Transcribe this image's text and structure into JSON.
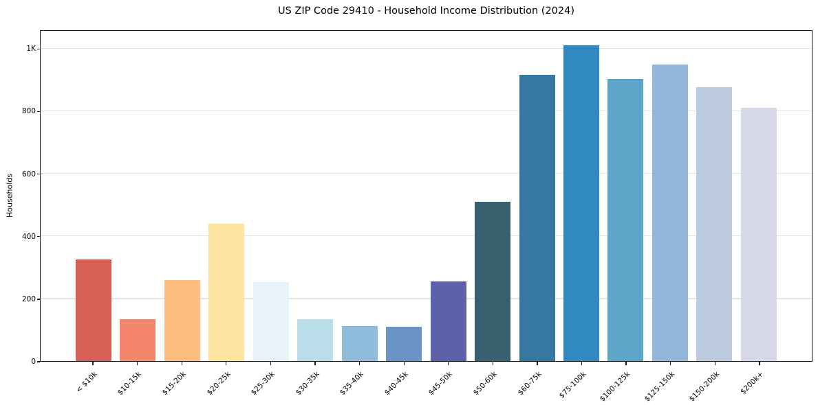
{
  "figure": {
    "background_color": "#ffffff",
    "text_color": "#000000",
    "spine_color": "#1a1a1a",
    "grid_color": "#e4e4e4"
  },
  "chart_data": {
    "type": "bar",
    "title": "US ZIP Code 29410 - Household Income Distribution (2024)",
    "xlabel": "",
    "ylabel": "Households",
    "categories": [
      "< $10k",
      "$10-15k",
      "$15-20k",
      "$20-25k",
      "$25-30k",
      "$30-35k",
      "$35-40k",
      "$40-45k",
      "$45-50k",
      "$50-60k",
      "$60-75k",
      "$75-100k",
      "$100-125k",
      "$125-150k",
      "$150-200k",
      "$200k+"
    ],
    "values": [
      325,
      133,
      258,
      440,
      252,
      135,
      113,
      109,
      254,
      510,
      916,
      1010,
      903,
      949,
      875,
      811
    ],
    "bar_colors": [
      "#d75f55",
      "#f4876b",
      "#fcbd7f",
      "#fde4a1",
      "#e7f3f8",
      "#badee9",
      "#8fbcdb",
      "#6b93c6",
      "#5c61a9",
      "#3a5f6e",
      "#36789f",
      "#3189c1",
      "#5ca7c9",
      "#92b7d9",
      "#bccbe0",
      "#d6d8e7"
    ],
    "ylim": [
      0,
      1060
    ],
    "yticks": {
      "values": [
        0,
        200,
        400,
        600,
        800,
        1000
      ],
      "labels": [
        "0",
        "200",
        "400",
        "600",
        "800",
        "1K"
      ]
    },
    "grid": "horizontal",
    "legend_position": "none"
  }
}
